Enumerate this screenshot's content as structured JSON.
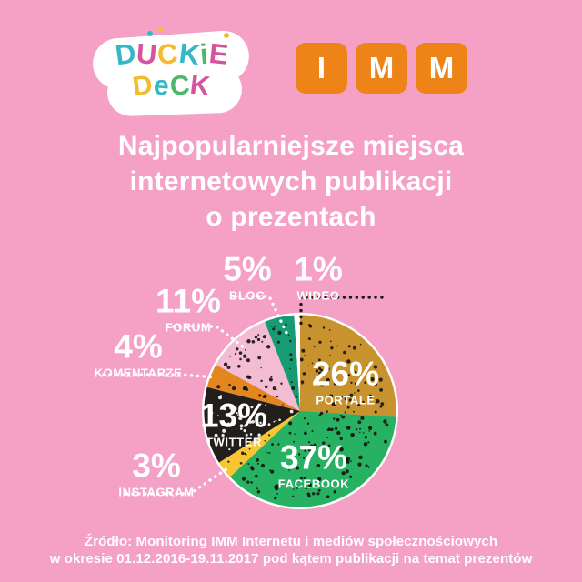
{
  "colors": {
    "background": "#f5a1c6",
    "imm_orange": "#ee8418",
    "leader_dark": "#1d1a17",
    "leader_white": "#ffffff",
    "duckie_palette": [
      "#35b8c6",
      "#d8539e",
      "#f3bb2f",
      "#4cb96a"
    ]
  },
  "header": {
    "duckie": {
      "top": [
        "D",
        "U",
        "C",
        "K",
        "i",
        "E"
      ],
      "bottom": [
        "D",
        "e",
        "C",
        "K"
      ]
    },
    "imm": {
      "letters": [
        "I",
        "M",
        "M"
      ]
    }
  },
  "title": {
    "line1": "Najpopularniejsze miejsca",
    "line2": "internetowych publikacji",
    "line3": "o prezentach"
  },
  "chart_data": {
    "type": "pie",
    "title": "Najpopularniejsze miejsca internetowych publikacji o prezentach",
    "start_angle": "12 o'clock",
    "direction": "clockwise",
    "legend_position": "none",
    "slices": [
      {
        "label": "PORTALE",
        "value": 26,
        "pct_label": "26%",
        "color": "#c8932f",
        "label_placement": "inside"
      },
      {
        "label": "FACEBOOK",
        "value": 37,
        "pct_label": "37%",
        "color": "#27b163",
        "label_placement": "inside"
      },
      {
        "label": "INSTAGRAM",
        "value": 3,
        "pct_label": "3%",
        "color": "#f7c632",
        "label_placement": "outside"
      },
      {
        "label": "TWITTER",
        "value": 13,
        "pct_label": "13%",
        "color": "#211e1b",
        "label_placement": "inside"
      },
      {
        "label": "KOMENTARZE",
        "value": 4,
        "pct_label": "4%",
        "color": "#e2861f",
        "label_placement": "outside"
      },
      {
        "label": "FORUM",
        "value": 11,
        "pct_label": "11%",
        "color": "#f4bcd3",
        "label_placement": "outside"
      },
      {
        "label": "BLOG",
        "value": 5,
        "pct_label": "5%",
        "color": "#179b73",
        "label_placement": "outside"
      },
      {
        "label": "WIDEO",
        "value": 1,
        "pct_label": "1%",
        "color": "#ffffff",
        "label_placement": "outside"
      }
    ]
  },
  "source": {
    "line1": "Źródło: Monitoring IMM Internetu i mediów społecznościowych",
    "line2": "w okresie 01.12.2016-19.11.2017 pod kątem publikacji na temat prezentów"
  }
}
